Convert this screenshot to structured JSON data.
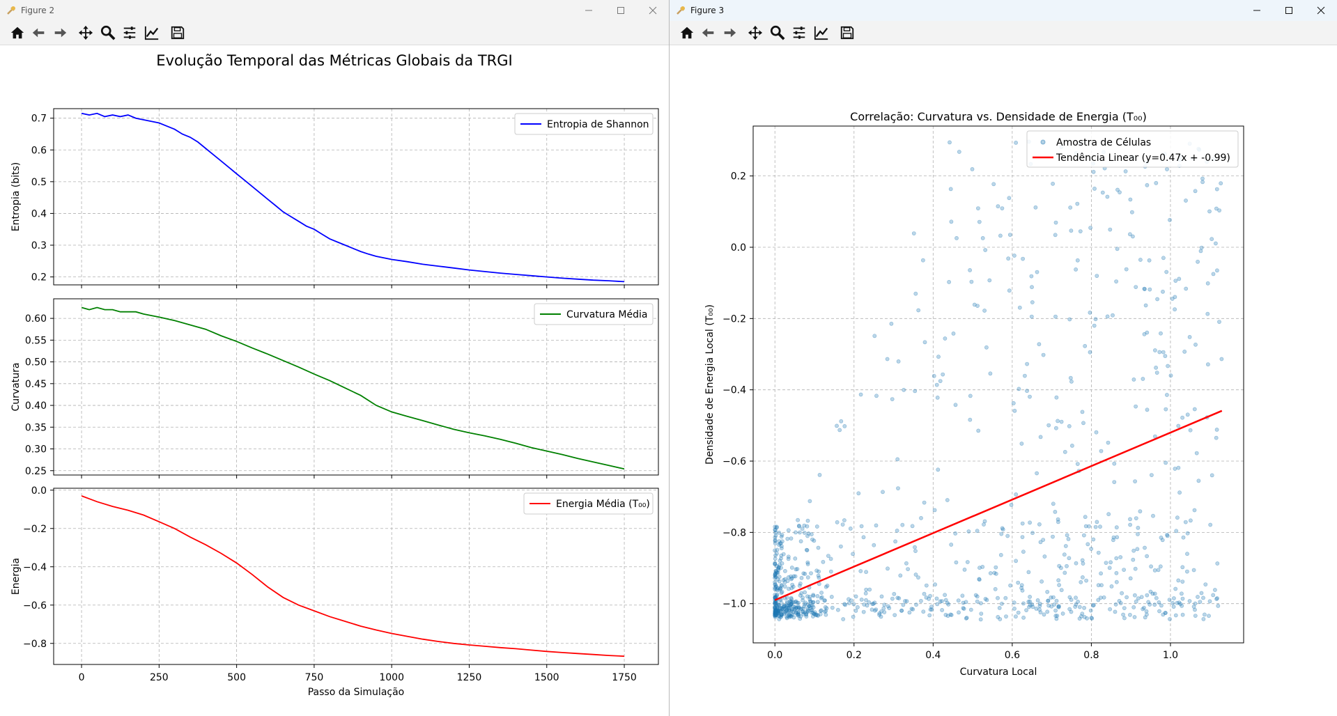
{
  "windows": {
    "fig2": {
      "title": "Figure 2",
      "suptitle": "Evolução Temporal das Métricas Globais da TRGI"
    },
    "fig3": {
      "title": "Figure 3"
    }
  },
  "toolbar": {
    "icons": [
      "home-icon",
      "back-arrow-icon",
      "forward-arrow-icon",
      "pan-icon",
      "zoom-icon",
      "configure-subplots-icon",
      "edit-axis-icon",
      "save-icon"
    ]
  },
  "colors": {
    "blue": "#0000ff",
    "green": "#008000",
    "red": "#ff0000",
    "scatter": "#1f77b4",
    "trend": "#ff0000"
  },
  "chart_data": [
    {
      "type": "line",
      "series": [
        {
          "name": "Entropia de Shannon",
          "color": "#0000ff",
          "x": [
            0,
            25,
            50,
            75,
            100,
            125,
            150,
            175,
            200,
            225,
            250,
            275,
            300,
            325,
            350,
            375,
            400,
            425,
            450,
            475,
            500,
            525,
            550,
            575,
            600,
            625,
            650,
            675,
            700,
            725,
            750,
            775,
            800,
            825,
            850,
            875,
            900,
            925,
            950,
            975,
            1000,
            1050,
            1100,
            1150,
            1200,
            1250,
            1300,
            1350,
            1400,
            1450,
            1500,
            1550,
            1600,
            1650,
            1700,
            1750
          ],
          "y": [
            0.715,
            0.71,
            0.715,
            0.705,
            0.71,
            0.705,
            0.71,
            0.7,
            0.695,
            0.69,
            0.685,
            0.675,
            0.665,
            0.65,
            0.64,
            0.625,
            0.605,
            0.585,
            0.565,
            0.545,
            0.525,
            0.505,
            0.485,
            0.465,
            0.445,
            0.425,
            0.405,
            0.39,
            0.375,
            0.36,
            0.35,
            0.335,
            0.32,
            0.31,
            0.3,
            0.29,
            0.28,
            0.272,
            0.265,
            0.26,
            0.255,
            0.248,
            0.24,
            0.234,
            0.228,
            0.222,
            0.217,
            0.212,
            0.208,
            0.204,
            0.2,
            0.196,
            0.193,
            0.19,
            0.188,
            0.185
          ]
        }
      ],
      "ylabel": "Entropia (bits)",
      "yticks": [
        "0.2",
        "0.3",
        "0.4",
        "0.5",
        "0.6",
        "0.7"
      ],
      "ylim": [
        0.175,
        0.73
      ],
      "xlim": [
        -90,
        1860
      ]
    },
    {
      "type": "line",
      "series": [
        {
          "name": "Curvatura Média",
          "color": "#008000",
          "x": [
            0,
            25,
            50,
            75,
            100,
            125,
            150,
            175,
            200,
            250,
            300,
            350,
            400,
            450,
            500,
            550,
            600,
            650,
            700,
            750,
            800,
            850,
            900,
            950,
            1000,
            1050,
            1100,
            1150,
            1200,
            1250,
            1300,
            1350,
            1400,
            1450,
            1500,
            1550,
            1600,
            1650,
            1700,
            1750
          ],
          "y": [
            0.625,
            0.62,
            0.625,
            0.62,
            0.62,
            0.615,
            0.615,
            0.615,
            0.61,
            0.603,
            0.595,
            0.585,
            0.575,
            0.56,
            0.547,
            0.532,
            0.518,
            0.503,
            0.488,
            0.472,
            0.457,
            0.44,
            0.423,
            0.4,
            0.385,
            0.375,
            0.365,
            0.355,
            0.345,
            0.337,
            0.33,
            0.322,
            0.313,
            0.303,
            0.295,
            0.287,
            0.278,
            0.27,
            0.262,
            0.254
          ]
        }
      ],
      "ylabel": "Curvatura",
      "yticks": [
        "0.25",
        "0.30",
        "0.35",
        "0.40",
        "0.45",
        "0.50",
        "0.55",
        "0.60"
      ],
      "ylim": [
        0.24,
        0.645
      ],
      "xlim": [
        -90,
        1860
      ]
    },
    {
      "type": "line",
      "series": [
        {
          "name": "Energia Média (T₀₀)",
          "color": "#ff0000",
          "x": [
            0,
            50,
            100,
            150,
            200,
            250,
            300,
            350,
            400,
            450,
            500,
            550,
            600,
            650,
            700,
            750,
            800,
            850,
            900,
            950,
            1000,
            1050,
            1100,
            1150,
            1200,
            1250,
            1300,
            1350,
            1400,
            1450,
            1500,
            1550,
            1600,
            1650,
            1700,
            1750
          ],
          "y": [
            -0.03,
            -0.06,
            -0.085,
            -0.105,
            -0.13,
            -0.165,
            -0.2,
            -0.245,
            -0.285,
            -0.33,
            -0.38,
            -0.44,
            -0.505,
            -0.56,
            -0.6,
            -0.63,
            -0.66,
            -0.685,
            -0.71,
            -0.73,
            -0.748,
            -0.763,
            -0.778,
            -0.79,
            -0.8,
            -0.808,
            -0.815,
            -0.822,
            -0.828,
            -0.835,
            -0.842,
            -0.848,
            -0.853,
            -0.858,
            -0.863,
            -0.867
          ]
        }
      ],
      "ylabel": "Energia",
      "xlabel": "Passo da Simulação",
      "xticks": [
        "0",
        "250",
        "500",
        "750",
        "1000",
        "1250",
        "1500",
        "1750"
      ],
      "yticks": [
        "0.0",
        "−0.2",
        "−0.4",
        "−0.6",
        "−0.8"
      ],
      "ylim": [
        -0.91,
        0.01
      ],
      "xlim": [
        -90,
        1860
      ]
    },
    {
      "type": "scatter",
      "title": "Correlação: Curvatura vs. Densidade de Energia (T₀₀)",
      "xlabel": "Curvatura Local",
      "ylabel": "Densidade de Energia Local (T₀₀)",
      "xticks": [
        "0.0",
        "0.2",
        "0.4",
        "0.6",
        "0.8",
        "1.0"
      ],
      "yticks": [
        "0.2",
        "0.0",
        "−0.2",
        "−0.4",
        "−0.6",
        "−0.8",
        "−1.0"
      ],
      "xlim": [
        -0.055,
        1.185
      ],
      "ylim": [
        -1.11,
        0.34
      ],
      "series": [
        {
          "name": "Amostra de Células",
          "color": "#1f77b4",
          "alpha": 0.3,
          "n_points": 1000
        },
        {
          "name": "Tendência Linear (y=0.47x + -0.99)",
          "color": "#ff0000",
          "slope": 0.47,
          "intercept": -0.99,
          "x_range": [
            0.0,
            1.13
          ]
        }
      ],
      "grid": true,
      "legend": "top-right"
    }
  ]
}
